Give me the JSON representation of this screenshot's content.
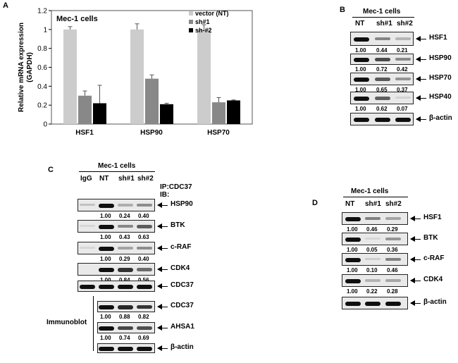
{
  "panels": {
    "a": "A",
    "b": "B",
    "c": "C",
    "d": "D"
  },
  "chart_data": {
    "type": "bar",
    "title": "Mec-1 cells",
    "ylabel": "Relative mRNA expression (GAPDH)",
    "ylabel_line1": "Relative mRNA expression",
    "ylabel_line2": "(GAPDH)",
    "categories": [
      "HSF1",
      "HSP90",
      "HSP70"
    ],
    "ylim": [
      0,
      1.2
    ],
    "yticks": [
      "0",
      "0.2",
      "0.4",
      "0.6",
      "0.8",
      "1",
      "1.2"
    ],
    "legend_position": "top-right",
    "series": [
      {
        "name": "vector (NT)",
        "color": "#cccccc",
        "values": [
          1.0,
          1.0,
          1.0
        ],
        "errors": [
          0.03,
          0.06,
          0.05
        ]
      },
      {
        "name": "sh#1",
        "color": "#888888",
        "values": [
          0.3,
          0.48,
          0.23
        ],
        "errors": [
          0.05,
          0.04,
          0.05
        ]
      },
      {
        "name": "sh-#2",
        "color": "#000000",
        "values": [
          0.22,
          0.21,
          0.25
        ],
        "errors": [
          0.19,
          0.01,
          0.005
        ]
      }
    ]
  },
  "panel_b": {
    "title": "Mec-1 cells",
    "lanes": [
      "NT",
      "sh#1",
      "sh#2"
    ],
    "blots": [
      {
        "label": "HSF1",
        "values": [
          "1.00",
          "0.44",
          "0.21"
        ],
        "intensity": [
          1.0,
          0.44,
          0.21
        ]
      },
      {
        "label": "HSP90",
        "values": [
          "1.00",
          "0.72",
          "0.42"
        ],
        "intensity": [
          1.0,
          0.72,
          0.42
        ]
      },
      {
        "label": "HSP70",
        "values": [
          "1.00",
          "0.65",
          "0.37"
        ],
        "intensity": [
          1.0,
          0.65,
          0.37
        ]
      },
      {
        "label": "HSP40",
        "values": [
          "1.00",
          "0.62",
          "0.07"
        ],
        "intensity": [
          1.0,
          0.62,
          0.07
        ]
      },
      {
        "label": "β-actin",
        "values": [],
        "intensity": [
          1.0,
          1.0,
          1.0
        ]
      }
    ]
  },
  "panel_c": {
    "title": "Mec-1 cells",
    "lanes": [
      "IgG",
      "NT",
      "sh#1",
      "sh#2"
    ],
    "ip_label": "IP:CDC37",
    "ib_label": "IB:",
    "immunoblot_label": "Immunoblot",
    "ip_blots": [
      {
        "label": "HSP90",
        "values": [
          "1.00",
          "0.24",
          "0.40"
        ],
        "intensity": [
          0.15,
          1.0,
          0.24,
          0.4
        ]
      },
      {
        "label": "BTK",
        "values": [
          "1.00",
          "0.43",
          "0.63"
        ],
        "intensity": [
          0.05,
          1.0,
          0.43,
          0.63
        ]
      },
      {
        "label": "c-RAF",
        "values": [
          "1.00",
          "0.29",
          "0.40"
        ],
        "intensity": [
          0.05,
          1.0,
          0.29,
          0.4
        ]
      },
      {
        "label": "CDK4",
        "values": [
          "1.00",
          "0.84",
          "0.56"
        ],
        "intensity": [
          0.0,
          1.0,
          0.84,
          0.56
        ]
      },
      {
        "label": "CDC37",
        "values": [],
        "intensity": [
          1.0,
          1.0,
          1.0,
          1.0
        ]
      }
    ],
    "ib_blots": [
      {
        "label": "CDC37",
        "values": [
          "1.00",
          "0.88",
          "0.82"
        ],
        "intensity": [
          1.0,
          0.88,
          0.82
        ]
      },
      {
        "label": "AHSA1",
        "values": [
          "1.00",
          "0.74",
          "0.69"
        ],
        "intensity": [
          1.0,
          0.74,
          0.69
        ]
      },
      {
        "label": "β-actin",
        "values": [],
        "intensity": [
          1.0,
          1.0,
          1.0
        ]
      }
    ]
  },
  "panel_d": {
    "title": "Mec-1 cells",
    "lanes": [
      "NT",
      "sh#1",
      "sh#2"
    ],
    "blots": [
      {
        "label": "HSF1",
        "values": [
          "1.00",
          "0.46",
          "0.29"
        ],
        "intensity": [
          1.0,
          0.46,
          0.29
        ]
      },
      {
        "label": "BTK",
        "values": [
          "1.00",
          "0.05",
          "0.36"
        ],
        "intensity": [
          1.0,
          0.05,
          0.36
        ]
      },
      {
        "label": "c-RAF",
        "values": [
          "1.00",
          "0.10",
          "0.46"
        ],
        "intensity": [
          1.0,
          0.1,
          0.46
        ]
      },
      {
        "label": "CDK4",
        "values": [
          "1.00",
          "0.22",
          "0.28"
        ],
        "intensity": [
          1.0,
          0.22,
          0.28
        ]
      },
      {
        "label": "β-actin",
        "values": [],
        "intensity": [
          1.0,
          1.0,
          1.0
        ]
      }
    ]
  }
}
